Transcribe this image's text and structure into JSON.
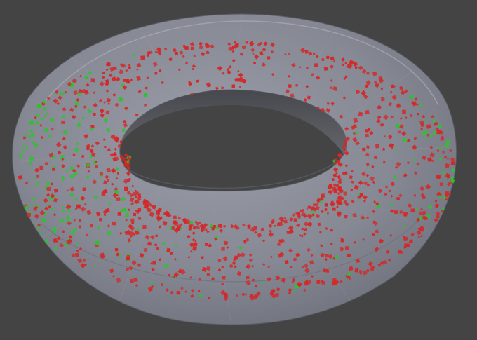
{
  "scene": {
    "background_color": "#444444",
    "object": "torus",
    "torus_surface_color": "#8a8d99",
    "torus_surface_opacity": 0.75,
    "particle_colors": {
      "red": "#d42828",
      "green": "#2ec22e"
    }
  }
}
